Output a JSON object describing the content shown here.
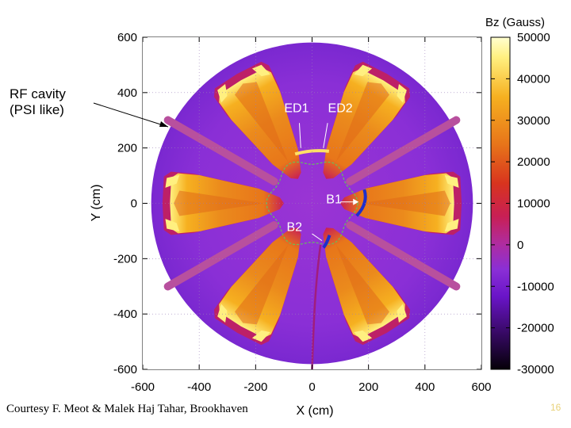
{
  "chart_data": {
    "type": "heatmap",
    "title": "",
    "xlabel": "X (cm)",
    "ylabel": "Y (cm)",
    "xlim": [
      -600,
      600
    ],
    "ylim": [
      -600,
      600
    ],
    "x_ticks": [
      "-600",
      "-400",
      "-200",
      "0",
      "200",
      "400",
      "600"
    ],
    "y_ticks": [
      "600",
      "400",
      "200",
      "0",
      "-200",
      "-400",
      "-600"
    ],
    "grid": true,
    "colorbar": {
      "title": "Bz (Gauss)",
      "range": [
        -30000,
        50000
      ],
      "ticks": [
        "50000",
        "40000",
        "30000",
        "20000",
        "10000",
        "0",
        "-10000",
        "-20000",
        "-30000"
      ]
    },
    "field_map": {
      "pole_radius_cm": 570,
      "sectors": 6,
      "sector_center_angles_deg": [
        0,
        60,
        120,
        180,
        240,
        300
      ],
      "hill_peak_bz_gauss": 50000,
      "background_bz_gauss": -13000
    },
    "rf_cavity_angles_deg": [
      30,
      150,
      210,
      330
    ],
    "annotations": [
      {
        "text": "RF cavity\n(PSI like)",
        "x": -430,
        "y": 310
      },
      {
        "text": "ED1",
        "x": -55,
        "y": 330
      },
      {
        "text": "ED2",
        "x": 100,
        "y": 330
      },
      {
        "text": "B1",
        "x": 50,
        "y": 0
      },
      {
        "text": "B2",
        "x": -90,
        "y": -100
      }
    ]
  },
  "footer": {
    "credit": "Courtesy F. Meot & Malek Haj Tahar, Brookhaven",
    "page_number": "16"
  },
  "colors": {
    "background_field": "#8a2fd6",
    "hill_field": "#e8761a",
    "hill_peak": "#fff080",
    "rf_cavity": "#b8509e",
    "extraction_element": "#ffe066",
    "bump_magnet": "#1e2fcc",
    "orbit": "#66c05a"
  }
}
